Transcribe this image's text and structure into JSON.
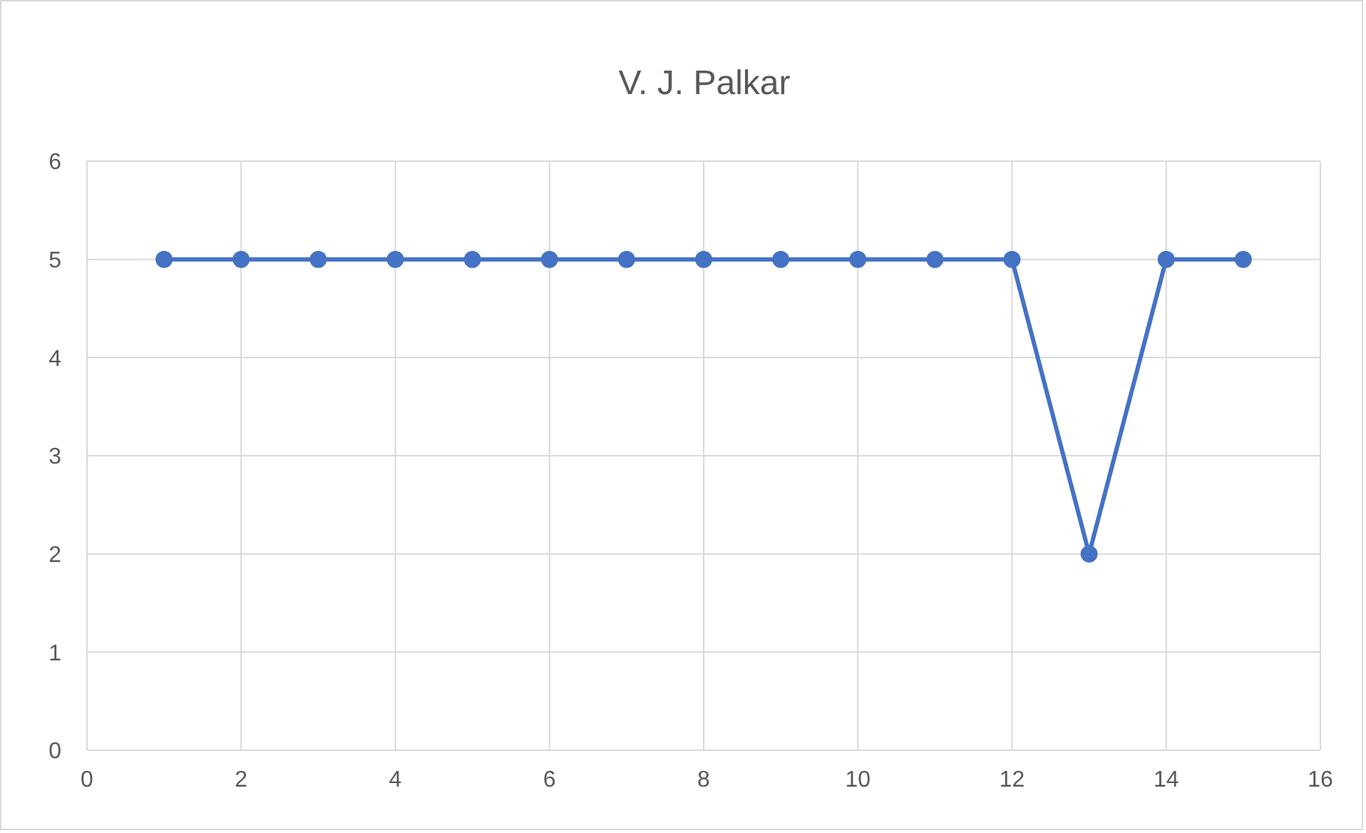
{
  "chart_data": {
    "type": "line",
    "title": "V. J. Palkar",
    "x": [
      1,
      2,
      3,
      4,
      5,
      6,
      7,
      8,
      9,
      10,
      11,
      12,
      13,
      14,
      15
    ],
    "series": [
      {
        "color": "#4472c4",
        "values": [
          5,
          5,
          5,
          5,
          5,
          5,
          5,
          5,
          5,
          5,
          5,
          5,
          2,
          5,
          5
        ]
      }
    ],
    "xlim": [
      0,
      16
    ],
    "xticks": [
      0,
      2,
      4,
      6,
      8,
      10,
      12,
      14,
      16
    ],
    "ylim": [
      0,
      6
    ],
    "yticks": [
      0,
      1,
      2,
      3,
      4,
      5,
      6
    ],
    "grid": true,
    "marker": "circle",
    "line_style": "solid",
    "legend": false
  }
}
